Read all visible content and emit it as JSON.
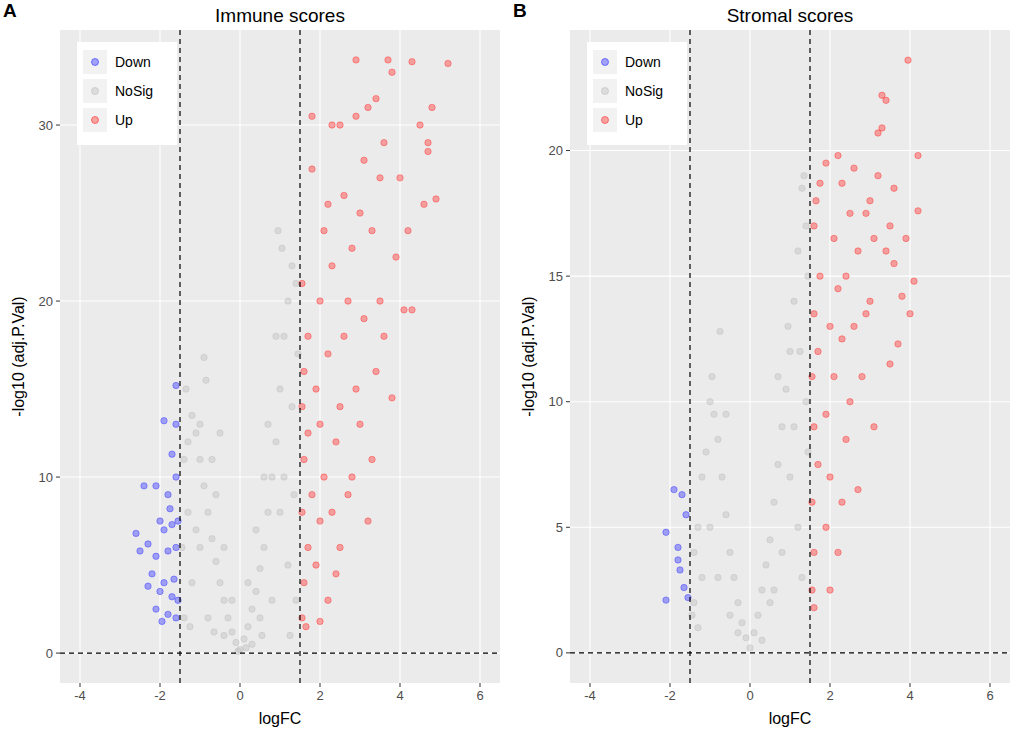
{
  "chart_data": [
    {
      "type": "scatter",
      "label": "A",
      "title": "Immune scores",
      "x_label": "logFC",
      "y_label": "-log10 (adj.P.Val)",
      "xlim": [
        -4.5,
        6.5
      ],
      "xticks": [
        -4,
        -2,
        0,
        2,
        4,
        6
      ],
      "ylim": [
        -1.7,
        35.4
      ],
      "yticks": [
        0,
        10,
        20,
        30
      ],
      "grid": true,
      "legend": "top-left",
      "marker": "circle",
      "vlines": [
        -1.5,
        1.5
      ],
      "hlines": [
        0
      ],
      "series": [
        {
          "name": "Down",
          "color": "#3333ff",
          "x": [
            -1.6,
            -1.9,
            -1.6,
            -1.7,
            -2.4,
            -2.1,
            -1.8,
            -1.6,
            -2.0,
            -1.9,
            -1.7,
            -1.55,
            -2.3,
            -2.5,
            -2.1,
            -1.8,
            -1.6,
            -2.2,
            -1.9,
            -1.65,
            -2.0,
            -1.7,
            -1.55,
            -2.1,
            -1.8,
            -1.95,
            -1.6,
            -2.3,
            -2.6,
            -1.75
          ],
          "values": [
            15.2,
            13.2,
            13,
            11.3,
            9.5,
            9.5,
            9,
            10,
            7.5,
            7,
            7.3,
            7.5,
            6.2,
            5.8,
            5.5,
            5.8,
            6,
            4.5,
            4,
            4.2,
            3.5,
            3.2,
            3,
            2.5,
            2.2,
            1.8,
            2,
            3.8,
            6.8,
            8.2
          ]
        },
        {
          "name": "NoSig",
          "color": "#bebebe",
          "x": [
            0,
            0.1,
            -0.1,
            0.2,
            -0.2,
            0.3,
            -0.3,
            0.4,
            -0.4,
            0.5,
            -0.5,
            0.6,
            -0.6,
            0.7,
            -0.7,
            0.8,
            -0.8,
            0.9,
            -0.9,
            1.0,
            -1.0,
            1.1,
            -1.1,
            1.2,
            -1.2,
            1.3,
            -1.3,
            1.4,
            -1.4,
            0.95,
            1.05,
            -0.85,
            -0.9,
            -0.5,
            0.5,
            -0.4,
            0.3,
            1.2,
            1.4,
            -1.2,
            -1.4,
            0.8,
            -0.8,
            1.0,
            -1.0,
            0.6,
            -0.6,
            1.3,
            -1.3,
            0.7,
            -0.7,
            1.1,
            -1.1,
            0.4,
            -0.4,
            1.45,
            -1.45,
            0.2,
            -0.2,
            0.9,
            -1.0,
            1.35,
            -1.35,
            0.15,
            -0.05,
            1.25,
            -1.25,
            0.55,
            -0.65
          ],
          "values": [
            0.2,
            0.8,
            0.6,
            1.5,
            1.2,
            2.5,
            2,
            3.5,
            3,
            4.8,
            4,
            6,
            5.2,
            8,
            6.5,
            10,
            8,
            12,
            9.5,
            15,
            11,
            18,
            12.5,
            20,
            13.5,
            22,
            12,
            21,
            11,
            24,
            23,
            15.5,
            16.8,
            12.5,
            2,
            1,
            0.5,
            5,
            3,
            4,
            2,
            3,
            2,
            8,
            6,
            10,
            9,
            14,
            8,
            13,
            11,
            10,
            7,
            7,
            6,
            17,
            6,
            4,
            3,
            18,
            13,
            9,
            15,
            0.3,
            0.1,
            1,
            1.5,
            1,
            1.2
          ]
        },
        {
          "name": "Up",
          "color": "#ff3333",
          "x": [
            1.55,
            1.6,
            1.7,
            1.55,
            1.8,
            1.6,
            1.7,
            1.55,
            1.6,
            1.7,
            1.55,
            1.9,
            2.0,
            2.1,
            2.0,
            1.9,
            2.2,
            2.0,
            2.3,
            2.1,
            1.8,
            2.2,
            2.4,
            2.5,
            2.6,
            2.3,
            2.5,
            2.8,
            2.7,
            2.9,
            3.0,
            2.8,
            3.0,
            2.6,
            3.1,
            2.5,
            2.9,
            3.2,
            3.3,
            3.4,
            3.5,
            3.3,
            3.5,
            3.6,
            3.4,
            3.7,
            3.8,
            2.9,
            3.9,
            4.0,
            4.1,
            4.3,
            4.2,
            4.5,
            4.7,
            4.8,
            4.6,
            4.9,
            5.2,
            4.3,
            4.7,
            3.6,
            3.8,
            2.2,
            2.4,
            1.65,
            2.0,
            3.1,
            3.2,
            2.7,
            1.8,
            2.3
          ],
          "values": [
            2,
            4,
            6,
            8,
            9,
            11,
            12.5,
            14,
            16,
            18,
            21,
            5,
            7.5,
            10,
            13,
            15,
            17,
            20,
            22,
            24,
            27.5,
            25.5,
            12,
            14,
            18,
            8,
            6,
            10,
            20,
            15,
            13,
            23,
            25,
            26,
            28,
            30,
            30.5,
            7.5,
            11,
            16,
            20,
            24,
            27,
            29,
            31.5,
            33.7,
            33,
            33.7,
            22.5,
            27,
            19.5,
            19.5,
            24,
            30,
            29,
            31,
            25.5,
            25.8,
            33.5,
            33.6,
            28.5,
            18,
            14.5,
            3,
            4.5,
            1.5,
            1.8,
            19,
            31,
            9,
            30.5,
            30
          ]
        }
      ]
    },
    {
      "type": "scatter",
      "label": "B",
      "title": "Stromal scores",
      "x_label": "logFC",
      "y_label": "-log10 (adj.P.Val)",
      "xlim": [
        -4.5,
        6.5
      ],
      "xticks": [
        -4,
        -2,
        0,
        2,
        4,
        6
      ],
      "ylim": [
        -1.2,
        24.8
      ],
      "yticks": [
        0,
        5,
        10,
        15,
        20
      ],
      "grid": true,
      "legend": "top-left",
      "marker": "circle",
      "vlines": [
        -1.5,
        1.5
      ],
      "hlines": [
        0
      ],
      "series": [
        {
          "name": "Down",
          "color": "#3333ff",
          "x": [
            -2.1,
            -2.1,
            -1.9,
            -1.7,
            -1.6,
            -1.8,
            -1.75,
            -1.65,
            -1.55,
            -1.8
          ],
          "values": [
            2.1,
            4.8,
            6.5,
            6.3,
            5.5,
            3.7,
            3.3,
            2.6,
            2.2,
            4.2
          ]
        },
        {
          "name": "NoSig",
          "color": "#bebebe",
          "x": [
            0,
            0.1,
            -0.1,
            0.2,
            -0.2,
            0.3,
            -0.3,
            0.4,
            -0.4,
            0.5,
            -0.5,
            0.6,
            -0.6,
            0.7,
            -0.7,
            0.8,
            -0.8,
            0.9,
            -0.9,
            1.0,
            -1.0,
            1.1,
            -1.1,
            1.2,
            -1.2,
            1.3,
            -1.3,
            1.4,
            -1.4,
            1.45,
            -0.75,
            -0.95,
            0.95,
            1.35,
            0.5,
            -0.5,
            1.2,
            -1.2,
            1.0,
            -1.0,
            0.8,
            -0.8,
            1.4,
            -1.4,
            0.7,
            1.1,
            0.3,
            1.45,
            -1.45,
            1.25,
            -0.6,
            0.6,
            -0.3,
            1.3,
            -1.3
          ],
          "values": [
            0.2,
            0.8,
            0.6,
            1.5,
            1.2,
            2.5,
            2,
            3.5,
            3,
            4.5,
            4,
            6,
            5.5,
            7.5,
            7,
            9,
            8.5,
            10.5,
            9.5,
            12,
            10,
            14,
            8,
            16,
            7,
            18.5,
            5,
            17,
            4,
            15,
            12.8,
            11,
            13,
            19,
            2,
            1.5,
            5,
            3,
            7,
            5,
            4,
            3,
            10,
            2,
            11,
            9,
            0.5,
            8,
            1.5,
            12,
            9.5,
            2.5,
            0.8,
            3,
            1
          ]
        },
        {
          "name": "Up",
          "color": "#ff3333",
          "x": [
            1.55,
            1.6,
            1.55,
            1.7,
            1.6,
            1.55,
            1.7,
            1.6,
            1.75,
            1.6,
            1.65,
            1.9,
            2.0,
            1.9,
            2.1,
            2.0,
            2.2,
            2.1,
            1.9,
            2.2,
            1.75,
            1.6,
            2.3,
            2.4,
            2.5,
            2.3,
            2.6,
            2.4,
            2.7,
            2.5,
            2.3,
            2.6,
            2.8,
            2.9,
            3.0,
            2.9,
            3.0,
            3.1,
            3.2,
            3.3,
            3.4,
            3.3,
            3.2,
            3.4,
            3.5,
            3.6,
            3.7,
            3.8,
            3.9,
            4.0,
            4.1,
            4.2,
            4.2,
            3.95,
            3.6,
            2.7,
            2.2,
            3.1,
            3.5,
            2.0
          ],
          "values": [
            2.5,
            4,
            6,
            7.5,
            9,
            11,
            12,
            13.5,
            15,
            17,
            18,
            5,
            7,
            9.5,
            11,
            13,
            14.5,
            16.5,
            19.5,
            19.8,
            18.7,
            1.8,
            6,
            8.5,
            10,
            12.5,
            13,
            15,
            16,
            17.5,
            18.7,
            19.3,
            11,
            13.5,
            14,
            17.5,
            18,
            16.5,
            19,
            22.2,
            22,
            20.9,
            20.7,
            16,
            17,
            15.5,
            12.3,
            14.2,
            16.5,
            13.5,
            14.8,
            17.6,
            19.8,
            23.6,
            18.5,
            6.5,
            4,
            9,
            11.5,
            2.5
          ]
        }
      ]
    }
  ]
}
